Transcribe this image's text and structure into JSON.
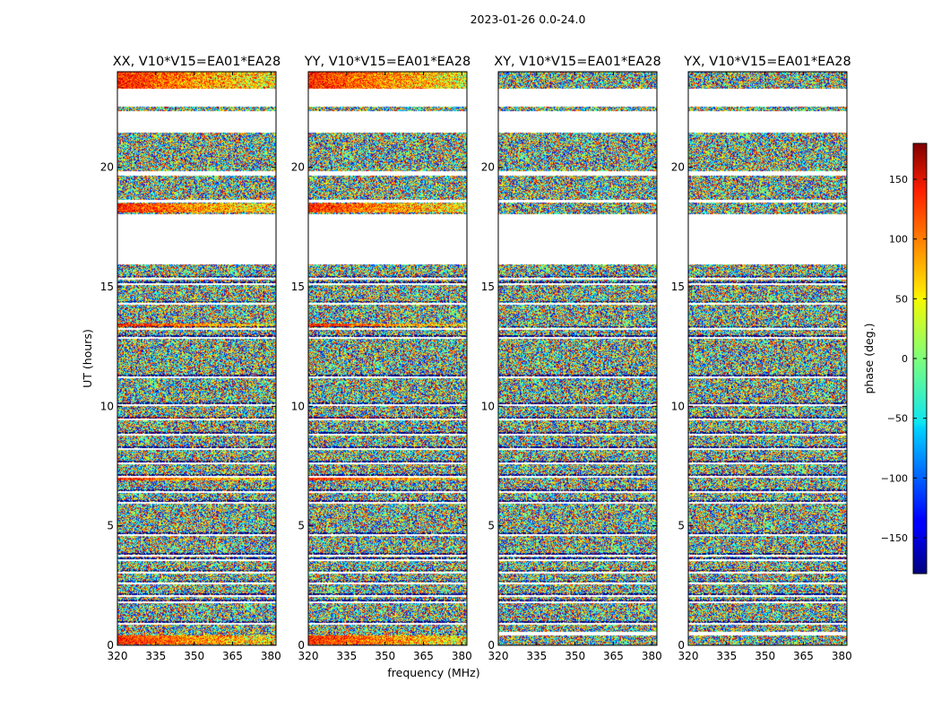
{
  "chart_data": {
    "type": "heatmap",
    "suptitle": "2023-01-26 0.0-24.0",
    "xlabel": "frequency (MHz)",
    "ylabel": "UT (hours)",
    "xlim": [
      320,
      382
    ],
    "ylim": [
      0,
      24
    ],
    "xticks": [
      320,
      335,
      350,
      365,
      380
    ],
    "yticks": [
      0,
      5,
      10,
      15,
      20
    ],
    "panels": [
      {
        "title": "XX, V10*V15=EA01*EA28",
        "mode": "parallel"
      },
      {
        "title": "YY, V10*V15=EA01*EA28",
        "mode": "parallel"
      },
      {
        "title": "XY, V10*V15=EA01*EA28",
        "mode": "cross"
      },
      {
        "title": "YX, V10*V15=EA01*EA28",
        "mode": "cross"
      }
    ],
    "colorbar": {
      "label": "phase (deg.)",
      "range": [
        -180,
        180
      ],
      "ticks": [
        150,
        100,
        50,
        0,
        -50,
        -100,
        -150
      ],
      "tick_labels": [
        "150",
        "100",
        "50",
        "0",
        "−50",
        "−100",
        "−150"
      ],
      "colormap": "jet"
    },
    "flagged_ut_ranges": [
      [
        0.42,
        0.58
      ],
      [
        15.95,
        18.05
      ],
      [
        18.52,
        18.62
      ],
      [
        19.65,
        19.82
      ],
      [
        21.45,
        22.35
      ],
      [
        22.55,
        23.3
      ],
      [
        23.35,
        24.0
      ]
    ],
    "flagged_ut_ranges_parallel_only": [
      [
        23.35,
        24.0
      ]
    ],
    "flagged_ut_ranges_cross_only": [
      [
        0.42,
        0.58
      ]
    ],
    "blank_ut_lines": [
      0.9,
      1.8,
      2.05,
      2.6,
      3.05,
      3.55,
      3.75,
      4.6,
      5.95,
      6.4,
      7.05,
      7.6,
      8.2,
      8.8,
      9.45,
      10.05,
      11.2,
      12.85,
      13.25,
      14.3,
      15.1,
      15.35
    ]
  }
}
